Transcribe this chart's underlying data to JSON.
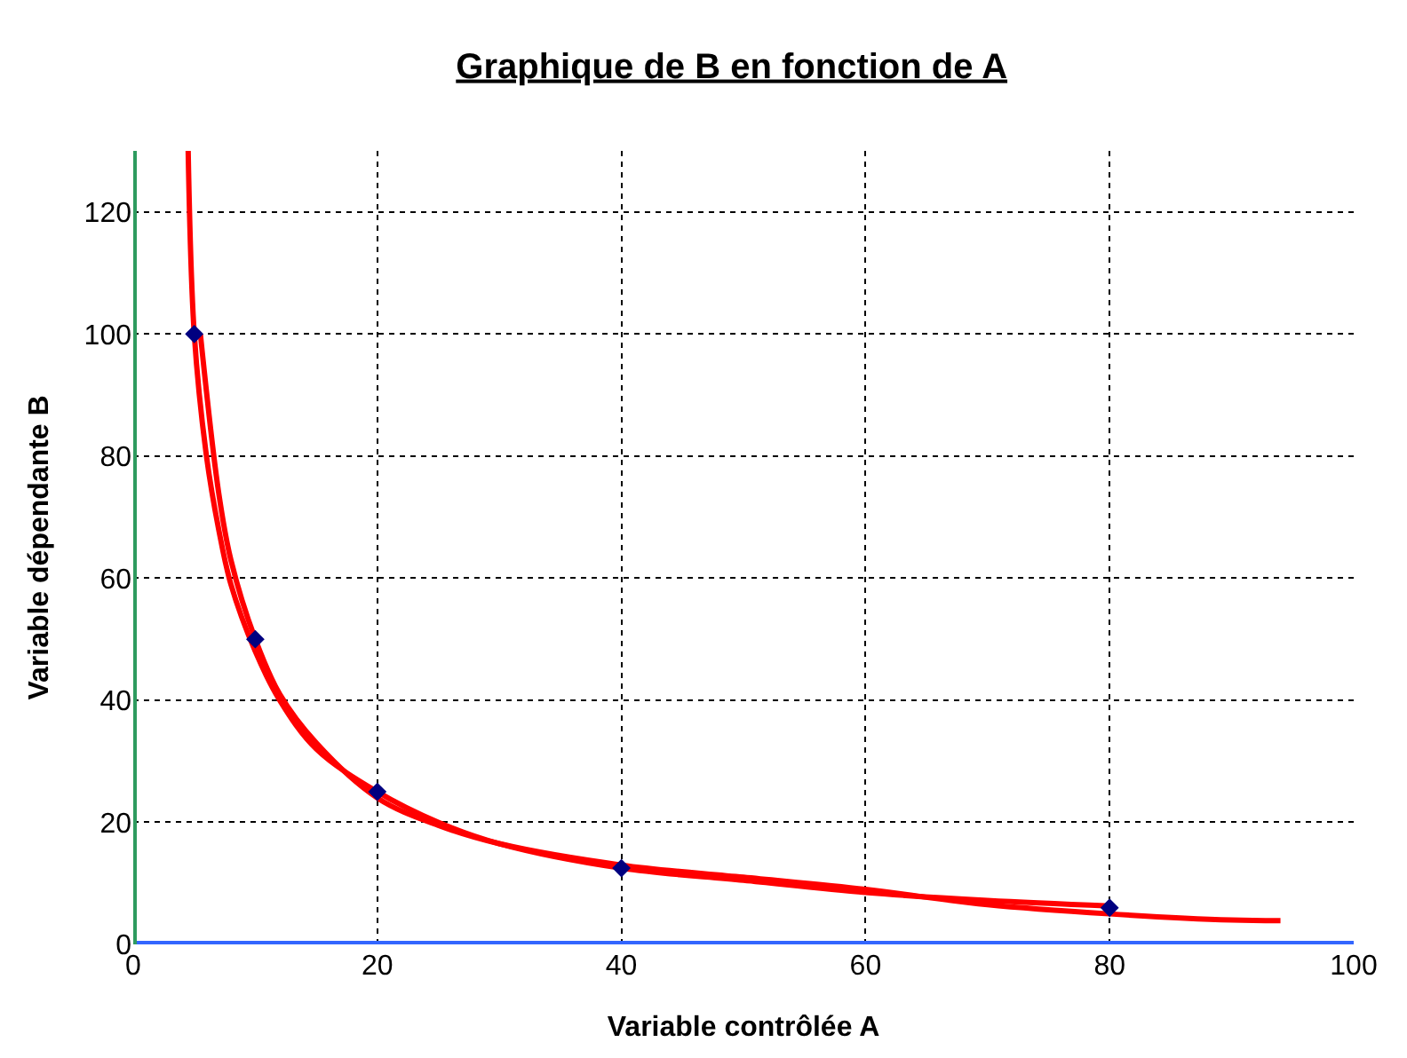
{
  "chart_data": {
    "type": "scatter",
    "title": "Graphique de B en fonction de A",
    "xlabel": "Variable contrôlée A",
    "ylabel": "Variable dépendante B",
    "xlim": [
      0,
      100
    ],
    "xticks": [
      0,
      20,
      40,
      60,
      80,
      100
    ],
    "ylim": [
      0,
      130
    ],
    "yticks": [
      0,
      20,
      40,
      60,
      80,
      100,
      120
    ],
    "grid": true,
    "series": [
      {
        "type": "line",
        "marker": "none",
        "color": "#ff0000",
        "x": [
          4.5,
          5,
          6,
          7,
          8,
          10,
          12,
          15,
          20,
          25,
          30,
          40,
          50,
          60,
          70,
          80
        ],
        "values": [
          130,
          100,
          80,
          68,
          59,
          48,
          40,
          32,
          25,
          20,
          16.5,
          12.5,
          10.5,
          8.5,
          7.2,
          6.3
        ]
      },
      {
        "type": "line",
        "marker": "none",
        "color": "#ff0000",
        "x": [
          5.5,
          7,
          8,
          10,
          12,
          15,
          20,
          25,
          30,
          40,
          50,
          60,
          70,
          80,
          90,
          94
        ],
        "values": [
          100,
          74,
          63,
          50,
          41,
          33,
          24,
          19.5,
          16.5,
          13,
          11,
          9,
          6.5,
          5,
          4,
          3.9
        ]
      },
      {
        "marker": "diamond",
        "color": "#000080",
        "x": [
          5,
          10,
          20,
          40,
          80
        ],
        "values": [
          100,
          50,
          25,
          12.5,
          6
        ]
      }
    ]
  }
}
